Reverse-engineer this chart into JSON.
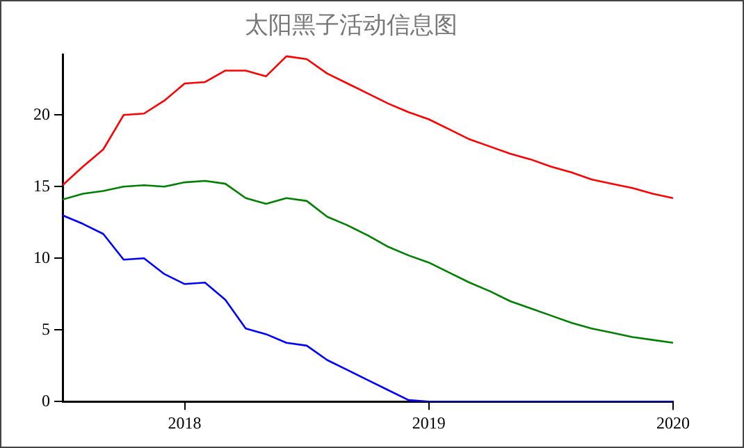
{
  "chart_data": {
    "type": "line",
    "title": "太阳黑子活动信息图",
    "x": [
      "2017-07",
      "2017-08",
      "2017-09",
      "2017-10",
      "2017-11",
      "2017-12",
      "2018-01",
      "2018-02",
      "2018-03",
      "2018-04",
      "2018-05",
      "2018-06",
      "2018-07",
      "2018-08",
      "2018-09",
      "2018-10",
      "2018-11",
      "2018-12",
      "2019-01",
      "2019-02",
      "2019-03",
      "2019-04",
      "2019-05",
      "2019-06",
      "2019-07",
      "2019-08",
      "2019-09",
      "2019-10",
      "2019-11",
      "2019-12",
      "2020-01"
    ],
    "series": [
      {
        "color": "#ff0000",
        "values": [
          15.1,
          16.4,
          17.6,
          20.0,
          20.1,
          21.0,
          22.2,
          22.3,
          23.1,
          23.1,
          22.7,
          24.1,
          23.9,
          22.9,
          22.2,
          21.5,
          20.8,
          20.2,
          19.7,
          19.0,
          18.3,
          17.8,
          17.3,
          16.9,
          16.4,
          16.0,
          15.5,
          15.2,
          14.9,
          14.5,
          14.2
        ]
      },
      {
        "color": "#008000",
        "values": [
          14.1,
          14.5,
          14.7,
          15.0,
          15.1,
          15.0,
          15.3,
          15.4,
          15.2,
          14.2,
          13.8,
          14.2,
          14.0,
          12.9,
          12.3,
          11.6,
          10.8,
          10.2,
          9.7,
          9.0,
          8.3,
          7.7,
          7.0,
          6.5,
          6.0,
          5.5,
          5.1,
          4.8,
          4.5,
          4.3,
          4.1
        ]
      },
      {
        "color": "#0000ff",
        "values": [
          13.0,
          12.4,
          11.7,
          9.9,
          10.0,
          8.9,
          8.2,
          8.3,
          7.1,
          5.1,
          4.7,
          4.1,
          3.9,
          2.9,
          2.2,
          1.5,
          0.8,
          0.1,
          0,
          0,
          0,
          0,
          0,
          0,
          0,
          0,
          0,
          0,
          0,
          0,
          0
        ]
      }
    ],
    "xlim": [
      "2017-07",
      "2020-01"
    ],
    "xticks": [
      "2018",
      "2019",
      "2020"
    ],
    "ylim": [
      0,
      24.2
    ],
    "yticks": [
      0,
      5,
      10,
      15,
      20
    ],
    "grid": false,
    "legend": false,
    "marker": "none",
    "line_style": "solid"
  }
}
